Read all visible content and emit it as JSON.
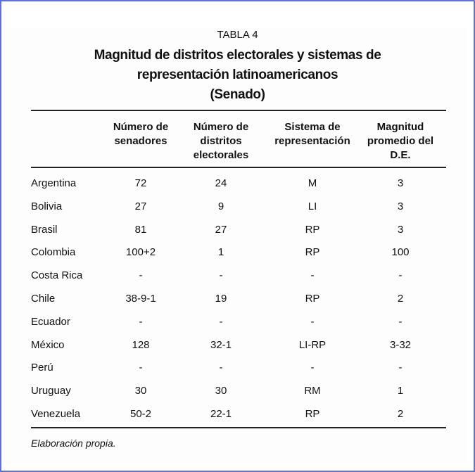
{
  "table": {
    "label": "TABLA 4",
    "title_lines": [
      "Magnitud de distritos electorales y sistemas de",
      "representación latinoamericanos",
      "(Senado)"
    ],
    "headers": [
      [
        "Número de",
        "senadores"
      ],
      [
        "Número de",
        "distritos",
        "electorales"
      ],
      [
        "Sistema de",
        "representación"
      ],
      [
        "Magnitud",
        "promedio del",
        "D.E."
      ]
    ],
    "rows": [
      [
        "Argentina",
        "72",
        "24",
        "M",
        "3"
      ],
      [
        "Bolivia",
        "27",
        "9",
        "LI",
        "3"
      ],
      [
        "Brasil",
        "81",
        "27",
        "RP",
        "3"
      ],
      [
        "Colombia",
        "100+2",
        "1",
        "RP",
        "100"
      ],
      [
        "Costa Rica",
        "-",
        "-",
        "-",
        "-"
      ],
      [
        "Chile",
        "38-9-1",
        "19",
        "RP",
        "2"
      ],
      [
        "Ecuador",
        "-",
        "-",
        "-",
        "-"
      ],
      [
        "México",
        "128",
        "32-1",
        "LI-RP",
        "3-32"
      ],
      [
        "Perú",
        "-",
        "-",
        "-",
        "-"
      ],
      [
        "Uruguay",
        "30",
        "30",
        "RM",
        "1"
      ],
      [
        "Venezuela",
        "50-2",
        "22-1",
        "RP",
        "2"
      ]
    ],
    "note": "Elaboración propia."
  }
}
